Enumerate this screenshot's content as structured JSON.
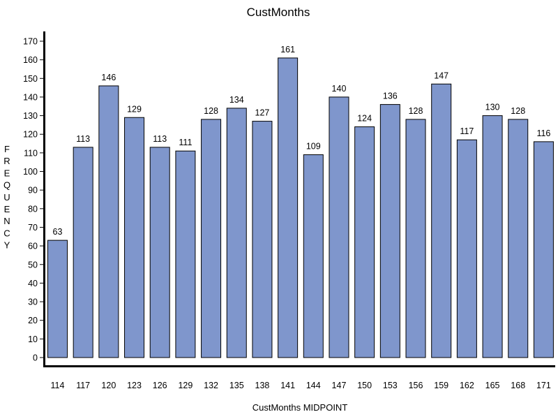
{
  "chart_data": {
    "type": "bar",
    "title": "CustMonths",
    "xlabel": "CustMonths MIDPOINT",
    "ylabel": "FREQUENCY",
    "categories": [
      "114",
      "117",
      "120",
      "123",
      "126",
      "129",
      "132",
      "135",
      "138",
      "141",
      "144",
      "147",
      "150",
      "153",
      "156",
      "159",
      "162",
      "165",
      "168",
      "171"
    ],
    "values": [
      63,
      113,
      146,
      129,
      113,
      111,
      128,
      134,
      127,
      161,
      109,
      140,
      124,
      136,
      128,
      147,
      117,
      130,
      128,
      116
    ],
    "ylim": [
      0,
      170
    ],
    "yticks": [
      0,
      10,
      20,
      30,
      40,
      50,
      60,
      70,
      80,
      90,
      100,
      110,
      120,
      130,
      140,
      150,
      160,
      170
    ],
    "bar_color": "#7f96cc",
    "bar_outline_color": "#000000",
    "grid": false,
    "legend": "none",
    "data_labels": true
  }
}
